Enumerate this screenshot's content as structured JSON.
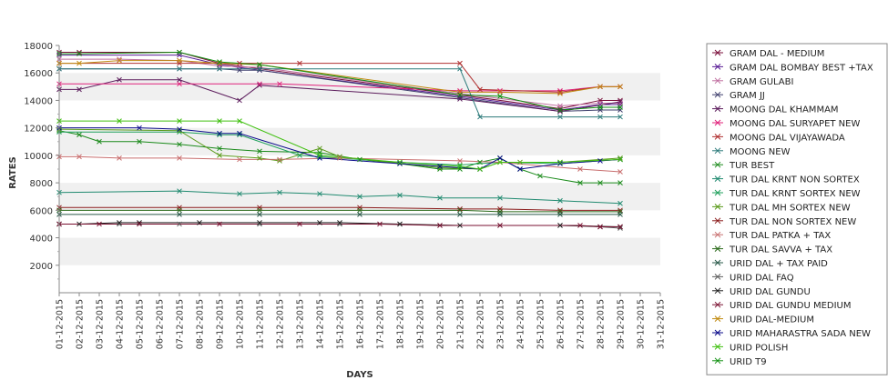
{
  "chart_data": {
    "type": "line",
    "xlabel": "DAYS",
    "ylabel": "RATES",
    "ylim": [
      0,
      18000
    ],
    "yticks": [
      2000,
      4000,
      6000,
      8000,
      10000,
      12000,
      14000,
      16000,
      18000
    ],
    "grid": "alternating horizontal bands",
    "legend_position": "right",
    "categories": [
      "01-12-2015",
      "02-12-2015",
      "03-12-2015",
      "04-12-2015",
      "05-12-2015",
      "06-12-2015",
      "07-12-2015",
      "08-12-2015",
      "09-12-2015",
      "10-12-2015",
      "11-12-2015",
      "12-12-2015",
      "13-12-2015",
      "14-12-2015",
      "15-12-2015",
      "16-12-2015",
      "17-12-2015",
      "18-12-2015",
      "19-12-2015",
      "20-12-2015",
      "21-12-2015",
      "22-12-2015",
      "23-12-2015",
      "24-12-2015",
      "25-12-2015",
      "26-12-2015",
      "27-12-2015",
      "28-12-2015",
      "29-12-2015",
      "30-12-2015",
      "31-12-2015"
    ],
    "series": [
      {
        "name": "GRAM DAL - MEDIUM",
        "color": "#7a0e3a",
        "points": [
          [
            0,
            17500
          ],
          [
            1,
            17500
          ],
          [
            6,
            17500
          ],
          [
            8,
            16700
          ],
          [
            10,
            16300
          ],
          [
            20,
            14400
          ],
          [
            25,
            13400
          ],
          [
            27,
            14000
          ],
          [
            28,
            14000
          ]
        ]
      },
      {
        "name": "GRAM DAL BOMBAY BEST +TAX",
        "color": "#5a1e96",
        "points": [
          [
            0,
            17300
          ],
          [
            6,
            17300
          ],
          [
            8,
            16600
          ],
          [
            10,
            16200
          ],
          [
            20,
            14300
          ],
          [
            25,
            13300
          ],
          [
            27,
            13700
          ],
          [
            28,
            13700
          ]
        ]
      },
      {
        "name": "GRAM GULABI",
        "color": "#c06fa0",
        "points": [
          [
            0,
            17000
          ],
          [
            3,
            17000
          ],
          [
            6,
            16900
          ],
          [
            8,
            16500
          ],
          [
            10,
            16400
          ],
          [
            20,
            14500
          ],
          [
            25,
            13600
          ],
          [
            27,
            13800
          ],
          [
            28,
            13800
          ]
        ]
      },
      {
        "name": "GRAM JJ",
        "color": "#3d3d6b",
        "points": [
          [
            0,
            16300
          ],
          [
            6,
            16300
          ],
          [
            8,
            16300
          ],
          [
            9,
            16200
          ],
          [
            10,
            16200
          ],
          [
            20,
            14200
          ],
          [
            25,
            13200
          ],
          [
            27,
            13300
          ],
          [
            28,
            13300
          ]
        ]
      },
      {
        "name": "MOONG DAL KHAMMAM",
        "color": "#5c1c5c",
        "points": [
          [
            0,
            14800
          ],
          [
            1,
            14800
          ],
          [
            3,
            15500
          ],
          [
            6,
            15500
          ],
          [
            9,
            14000
          ],
          [
            10,
            15100
          ],
          [
            20,
            14100
          ],
          [
            25,
            13200
          ],
          [
            28,
            13900
          ]
        ]
      },
      {
        "name": "MOONG DAL SURYAPET NEW",
        "color": "#e0207a",
        "points": [
          [
            0,
            15200
          ],
          [
            6,
            15200
          ],
          [
            10,
            15200
          ],
          [
            11,
            15200
          ],
          [
            20,
            14700
          ],
          [
            22,
            14700
          ],
          [
            25,
            14700
          ],
          [
            27,
            15000
          ],
          [
            28,
            15000
          ]
        ]
      },
      {
        "name": "MOONG DAL VIJAYAWADA",
        "color": "#b03030",
        "points": [
          [
            0,
            16700
          ],
          [
            6,
            16700
          ],
          [
            9,
            16700
          ],
          [
            12,
            16700
          ],
          [
            20,
            16700
          ],
          [
            21,
            14800
          ],
          [
            25,
            14600
          ],
          [
            27,
            15000
          ],
          [
            28,
            15000
          ]
        ]
      },
      {
        "name": "MOONG NEW",
        "color": "#2c7a7a",
        "points": [
          [
            0,
            16300
          ],
          [
            6,
            16300
          ],
          [
            8,
            16300
          ],
          [
            10,
            16300
          ],
          [
            20,
            16300
          ],
          [
            21,
            12800
          ],
          [
            25,
            12800
          ],
          [
            27,
            12800
          ],
          [
            28,
            12800
          ]
        ]
      },
      {
        "name": "TUR BEST",
        "color": "#1a8a1a",
        "points": [
          [
            0,
            11800
          ],
          [
            1,
            11500
          ],
          [
            2,
            11000
          ],
          [
            4,
            11000
          ],
          [
            6,
            10800
          ],
          [
            8,
            10500
          ],
          [
            10,
            10300
          ],
          [
            13,
            10200
          ],
          [
            15,
            9700
          ],
          [
            17,
            9400
          ],
          [
            19,
            9000
          ],
          [
            20,
            9000
          ],
          [
            21,
            9500
          ],
          [
            22,
            9800
          ],
          [
            23,
            9000
          ],
          [
            24,
            8500
          ],
          [
            26,
            8000
          ],
          [
            27,
            8000
          ],
          [
            28,
            8000
          ]
        ]
      },
      {
        "name": "TUR DAL KRNT NON SORTEX",
        "color": "#208a70",
        "points": [
          [
            0,
            7300
          ],
          [
            6,
            7400
          ],
          [
            9,
            7200
          ],
          [
            11,
            7300
          ],
          [
            13,
            7200
          ],
          [
            15,
            7000
          ],
          [
            17,
            7100
          ],
          [
            19,
            6900
          ],
          [
            22,
            6900
          ],
          [
            25,
            6700
          ],
          [
            28,
            6500
          ]
        ]
      },
      {
        "name": "TUR DAL KRNT SORTEX NEW",
        "color": "#1fa05c",
        "points": [
          [
            0,
            11700
          ],
          [
            6,
            11700
          ],
          [
            8,
            11500
          ],
          [
            9,
            11500
          ],
          [
            12,
            10000
          ],
          [
            13,
            9900
          ],
          [
            17,
            9500
          ],
          [
            20,
            9300
          ],
          [
            22,
            9500
          ],
          [
            25,
            9400
          ],
          [
            28,
            9700
          ]
        ]
      },
      {
        "name": "TUR DAL MH SORTEX NEW",
        "color": "#5a9a1a",
        "points": [
          [
            0,
            11900
          ],
          [
            6,
            11800
          ],
          [
            8,
            10000
          ],
          [
            10,
            9800
          ],
          [
            11,
            9600
          ],
          [
            13,
            10500
          ],
          [
            14,
            9900
          ],
          [
            19,
            9100
          ],
          [
            21,
            9000
          ],
          [
            22,
            9500
          ],
          [
            23,
            9500
          ],
          [
            25,
            9500
          ],
          [
            28,
            9800
          ]
        ]
      },
      {
        "name": "TUR DAL NON SORTEX NEW",
        "color": "#8a1a1a",
        "points": [
          [
            0,
            6200
          ],
          [
            6,
            6200
          ],
          [
            10,
            6200
          ],
          [
            15,
            6200
          ],
          [
            20,
            6100
          ],
          [
            22,
            6100
          ],
          [
            25,
            6000
          ],
          [
            28,
            6000
          ]
        ]
      },
      {
        "name": "TUR DAL PATKA + TAX",
        "color": "#c86e6e",
        "points": [
          [
            0,
            9900
          ],
          [
            1,
            9900
          ],
          [
            3,
            9800
          ],
          [
            6,
            9800
          ],
          [
            9,
            9700
          ],
          [
            11,
            9700
          ],
          [
            14,
            9800
          ],
          [
            20,
            9600
          ],
          [
            22,
            9500
          ],
          [
            26,
            9000
          ],
          [
            28,
            8800
          ]
        ]
      },
      {
        "name": "TUR DAL SAVVA + TAX",
        "color": "#2a6a1a",
        "points": [
          [
            0,
            6000
          ],
          [
            6,
            6000
          ],
          [
            10,
            6000
          ],
          [
            15,
            6000
          ],
          [
            20,
            6000
          ],
          [
            22,
            5900
          ],
          [
            25,
            5900
          ],
          [
            28,
            5900
          ]
        ]
      },
      {
        "name": "URID DAL + TAX PAID",
        "color": "#2a5a4a",
        "points": [
          [
            0,
            5700
          ],
          [
            6,
            5700
          ],
          [
            10,
            5700
          ],
          [
            15,
            5700
          ],
          [
            20,
            5700
          ],
          [
            22,
            5700
          ],
          [
            25,
            5700
          ],
          [
            28,
            5700
          ]
        ]
      },
      {
        "name": "URID DAL FAQ",
        "color": "#606060",
        "points": [
          [
            0,
            5000
          ],
          [
            3,
            5000
          ],
          [
            6,
            5000
          ],
          [
            10,
            5000
          ],
          [
            14,
            5000
          ],
          [
            17,
            5000
          ],
          [
            19,
            4900
          ],
          [
            22,
            4900
          ],
          [
            25,
            4900
          ],
          [
            27,
            4800
          ],
          [
            28,
            4700
          ]
        ]
      },
      {
        "name": "URID DAL GUNDU",
        "color": "#202020",
        "points": [
          [
            0,
            5000
          ],
          [
            1,
            5000
          ],
          [
            3,
            5100
          ],
          [
            4,
            5100
          ],
          [
            7,
            5100
          ],
          [
            10,
            5100
          ],
          [
            13,
            5100
          ],
          [
            14,
            5100
          ],
          [
            17,
            5000
          ],
          [
            20,
            4900
          ],
          [
            25,
            4900
          ],
          [
            28,
            4800
          ]
        ]
      },
      {
        "name": "URID DAL GUNDU MEDIUM",
        "color": "#7a1030",
        "points": [
          [
            0,
            5000
          ],
          [
            2,
            5000
          ],
          [
            4,
            5000
          ],
          [
            8,
            5000
          ],
          [
            12,
            5000
          ],
          [
            16,
            5000
          ],
          [
            19,
            4900
          ],
          [
            22,
            4900
          ],
          [
            26,
            4900
          ],
          [
            27,
            4800
          ],
          [
            28,
            4800
          ]
        ]
      },
      {
        "name": "URID DAL-MEDIUM",
        "color": "#c08a10",
        "points": [
          [
            0,
            16700
          ],
          [
            1,
            16700
          ],
          [
            3,
            16900
          ],
          [
            6,
            16900
          ],
          [
            8,
            16700
          ],
          [
            10,
            16600
          ],
          [
            20,
            14600
          ],
          [
            22,
            14600
          ],
          [
            25,
            14500
          ],
          [
            27,
            15000
          ],
          [
            28,
            15000
          ]
        ]
      },
      {
        "name": "URID MAHARASTRA SADA NEW",
        "color": "#0a0a8a",
        "points": [
          [
            0,
            12000
          ],
          [
            4,
            12000
          ],
          [
            6,
            11900
          ],
          [
            8,
            11600
          ],
          [
            9,
            11600
          ],
          [
            13,
            9800
          ],
          [
            17,
            9400
          ],
          [
            19,
            9200
          ],
          [
            21,
            9000
          ],
          [
            22,
            9800
          ],
          [
            23,
            9000
          ],
          [
            25,
            9400
          ],
          [
            27,
            9600
          ],
          [
            28,
            9700
          ]
        ]
      },
      {
        "name": "URID POLISH",
        "color": "#40c010",
        "points": [
          [
            0,
            12500
          ],
          [
            3,
            12500
          ],
          [
            6,
            12500
          ],
          [
            8,
            12500
          ],
          [
            9,
            12500
          ],
          [
            13,
            10000
          ],
          [
            17,
            9500
          ],
          [
            20,
            9200
          ],
          [
            21,
            9000
          ],
          [
            22,
            9500
          ],
          [
            25,
            9500
          ],
          [
            28,
            9700
          ]
        ]
      },
      {
        "name": "URID T9",
        "color": "#109010",
        "points": [
          [
            0,
            17400
          ],
          [
            1,
            17400
          ],
          [
            6,
            17500
          ],
          [
            8,
            16800
          ],
          [
            10,
            16600
          ],
          [
            20,
            14400
          ],
          [
            22,
            14300
          ],
          [
            25,
            13300
          ],
          [
            27,
            13500
          ],
          [
            28,
            13500
          ]
        ]
      }
    ]
  }
}
